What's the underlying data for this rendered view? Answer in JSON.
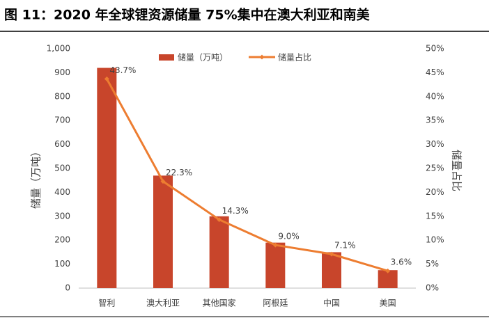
{
  "title": "图 11：2020 年全球锂资源储量 75%集中在澳大利亚和南美",
  "chart_data": {
    "type": "bar",
    "categories": [
      "智利",
      "澳大利亚",
      "其他国家",
      "阿根廷",
      "中国",
      "美国"
    ],
    "series": [
      {
        "name": "储量（万吨）",
        "type": "bar",
        "color": "#c8452b",
        "values": [
          920,
          470,
          300,
          190,
          150,
          75
        ]
      },
      {
        "name": "储量占比",
        "type": "line",
        "axis": "y2",
        "color": "#ed7d31",
        "values": [
          43.7,
          22.3,
          14.3,
          9.0,
          7.1,
          3.6
        ],
        "value_labels": [
          "43.7%",
          "22.3%",
          "14.3%",
          "9.0%",
          "7.1%",
          "3.6%"
        ]
      }
    ],
    "ylabel": "储量（万吨）",
    "y2label": "储量占比",
    "ylim": [
      0,
      1000
    ],
    "yticks": [
      0,
      100,
      200,
      300,
      400,
      500,
      600,
      700,
      800,
      900,
      {
        "value": 1000,
        "label": "1,000"
      }
    ],
    "y2lim": [
      0,
      50
    ],
    "y2ticks": [
      {
        "value": 0,
        "label": "0%"
      },
      {
        "value": 5,
        "label": "5%"
      },
      {
        "value": 10,
        "label": "10%"
      },
      {
        "value": 15,
        "label": "15%"
      },
      {
        "value": 20,
        "label": "20%"
      },
      {
        "value": 25,
        "label": "25%"
      },
      {
        "value": 30,
        "label": "30%"
      },
      {
        "value": 35,
        "label": "35%"
      },
      {
        "value": 40,
        "label": "40%"
      },
      {
        "value": 45,
        "label": "45%"
      },
      {
        "value": 50,
        "label": "50%"
      }
    ],
    "legend": "top"
  }
}
